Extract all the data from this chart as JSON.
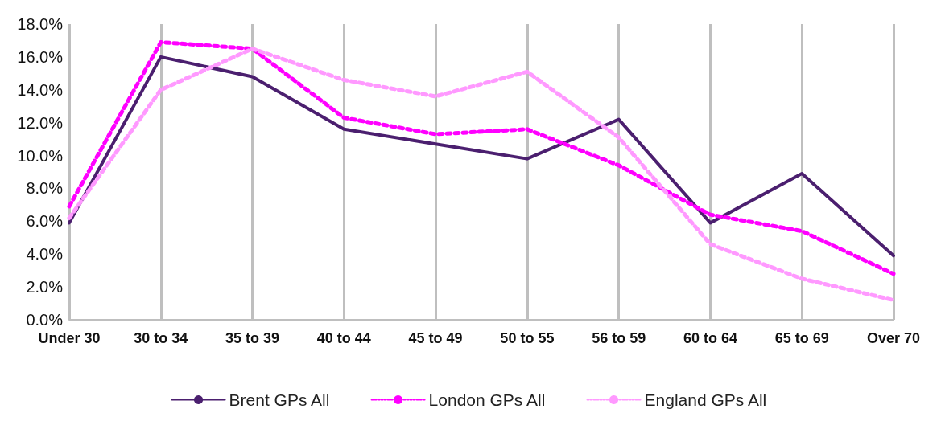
{
  "chart_data": {
    "type": "line",
    "categories": [
      "Under 30",
      "30 to 34",
      "35 to 39",
      "40 to 44",
      "45 to 49",
      "50 to 55",
      "56 to 59",
      "60 to 64",
      "65 to 69",
      "Over 70"
    ],
    "series": [
      {
        "name": "Brent GPs All",
        "color": "#4b1f6f",
        "line_style": "solid",
        "values": [
          5.9,
          16.0,
          14.8,
          11.6,
          10.7,
          9.8,
          12.2,
          5.9,
          8.9,
          3.9
        ]
      },
      {
        "name": "London GPs All",
        "color": "#ff00ff",
        "line_style": "dotted",
        "values": [
          6.9,
          16.9,
          16.5,
          12.3,
          11.3,
          11.6,
          9.4,
          6.4,
          5.4,
          2.8
        ]
      },
      {
        "name": "England GPs All",
        "color": "#ff99ff",
        "line_style": "dotted",
        "values": [
          6.2,
          14.0,
          16.5,
          14.6,
          13.6,
          15.1,
          11.1,
          4.6,
          2.5,
          1.2
        ]
      }
    ],
    "ylim": [
      0,
      18
    ],
    "yticks": [
      {
        "value": 0,
        "label": "0.0%"
      },
      {
        "value": 2,
        "label": "2.0%"
      },
      {
        "value": 4,
        "label": "4.0%"
      },
      {
        "value": 6,
        "label": "6.0%"
      },
      {
        "value": 8,
        "label": "8.0%"
      },
      {
        "value": 10,
        "label": "10.0%"
      },
      {
        "value": 12,
        "label": "12.0%"
      },
      {
        "value": 14,
        "label": "14.0%"
      },
      {
        "value": 16,
        "label": "16.0%"
      },
      {
        "value": 18,
        "label": "18.0%"
      }
    ],
    "grid": "x",
    "legend": "bottom",
    "marker": "none"
  }
}
